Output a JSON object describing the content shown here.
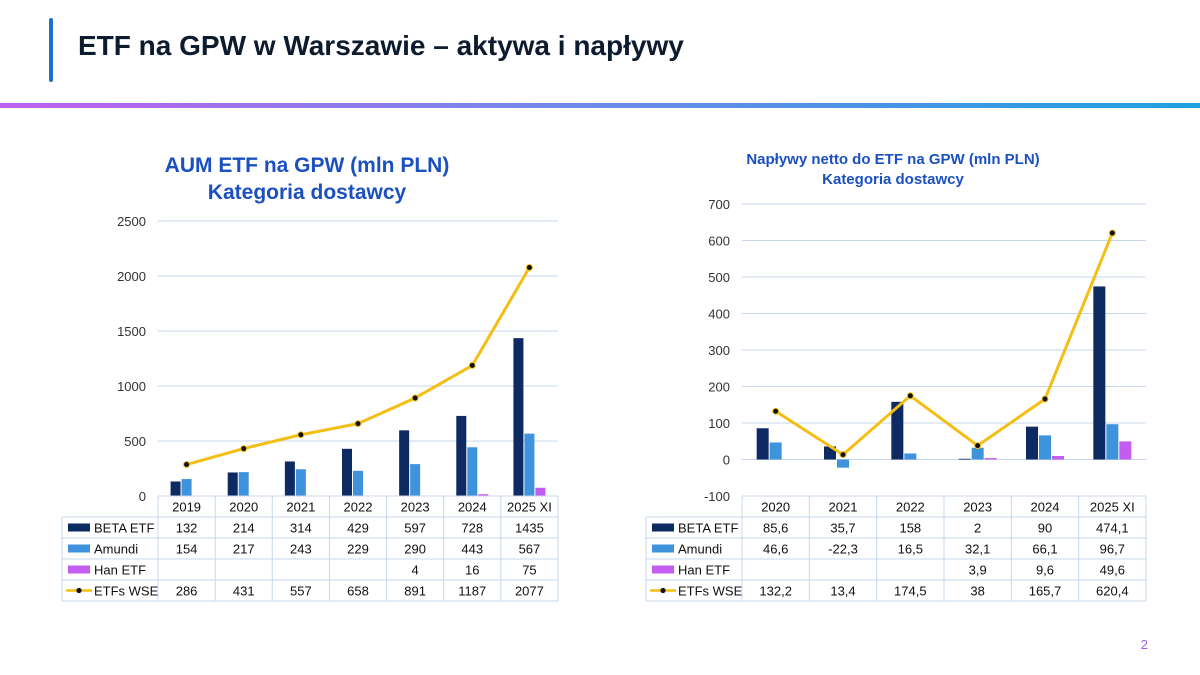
{
  "page": {
    "title": "ETF na GPW w Warszawie – aktywa i napływy",
    "page_number": "2"
  },
  "colors": {
    "beta": "#0e2a62",
    "amundi": "#3e93dc",
    "han": "#c45cf0",
    "line": "#f5be14",
    "grid": "#c5d7ee",
    "title": "#1b50c0"
  },
  "chart_data": [
    {
      "type": "bar",
      "title": "AUM ETF na GPW (mln PLN)",
      "subtitle": "Kategoria dostawcy",
      "categories": [
        "2019",
        "2020",
        "2021",
        "2022",
        "2023",
        "2024",
        "2025 XI"
      ],
      "ylim": [
        0,
        2500
      ],
      "yticks": [
        0,
        500,
        1000,
        1500,
        2000,
        2500
      ],
      "grid": true,
      "legend": "data-table",
      "series": [
        {
          "name": "BETA ETF",
          "kind": "bar",
          "values": [
            132,
            214,
            314,
            429,
            597,
            728,
            1435
          ],
          "labels": [
            "132",
            "214",
            "314",
            "429",
            "597",
            "728",
            "1435"
          ]
        },
        {
          "name": "Amundi",
          "kind": "bar",
          "values": [
            154,
            217,
            243,
            229,
            290,
            443,
            567
          ],
          "labels": [
            "154",
            "217",
            "243",
            "229",
            "290",
            "443",
            "567"
          ]
        },
        {
          "name": "Han ETF",
          "kind": "bar",
          "values": [
            null,
            null,
            null,
            null,
            4,
            16,
            75
          ],
          "labels": [
            "",
            "",
            "",
            "",
            "4",
            "16",
            "75"
          ]
        },
        {
          "name": "ETFs WSE",
          "kind": "line",
          "values": [
            286,
            431,
            557,
            658,
            891,
            1187,
            2077
          ],
          "labels": [
            "286",
            "431",
            "557",
            "658",
            "891",
            "1187",
            "2077"
          ]
        }
      ]
    },
    {
      "type": "bar",
      "title": "Napływy netto do ETF na GPW (mln PLN)",
      "subtitle": "Kategoria dostawcy",
      "categories": [
        "2020",
        "2021",
        "2022",
        "2023",
        "2024",
        "2025 XI"
      ],
      "ylim": [
        -100,
        700
      ],
      "yticks": [
        -100,
        0,
        100,
        200,
        300,
        400,
        500,
        600,
        700
      ],
      "grid": true,
      "legend": "data-table",
      "series": [
        {
          "name": "BETA ETF",
          "kind": "bar",
          "values": [
            85.6,
            35.7,
            158,
            2,
            90,
            474.1
          ],
          "labels": [
            "85,6",
            "35,7",
            "158",
            "2",
            "90",
            "474,1"
          ]
        },
        {
          "name": "Amundi",
          "kind": "bar",
          "values": [
            46.6,
            -22.3,
            16.5,
            32.1,
            66.1,
            96.7
          ],
          "labels": [
            "46,6",
            "-22,3",
            "16,5",
            "32,1",
            "66,1",
            "96,7"
          ]
        },
        {
          "name": "Han ETF",
          "kind": "bar",
          "values": [
            null,
            null,
            null,
            3.9,
            9.6,
            49.6
          ],
          "labels": [
            "",
            "",
            "",
            "3,9",
            "9,6",
            "49,6"
          ]
        },
        {
          "name": "ETFs WSE",
          "kind": "line",
          "values": [
            132.2,
            13.4,
            174.5,
            38,
            165.7,
            620.4
          ],
          "labels": [
            "132,2",
            "13,4",
            "174,5",
            "38",
            "165,7",
            "620,4"
          ]
        }
      ]
    }
  ]
}
